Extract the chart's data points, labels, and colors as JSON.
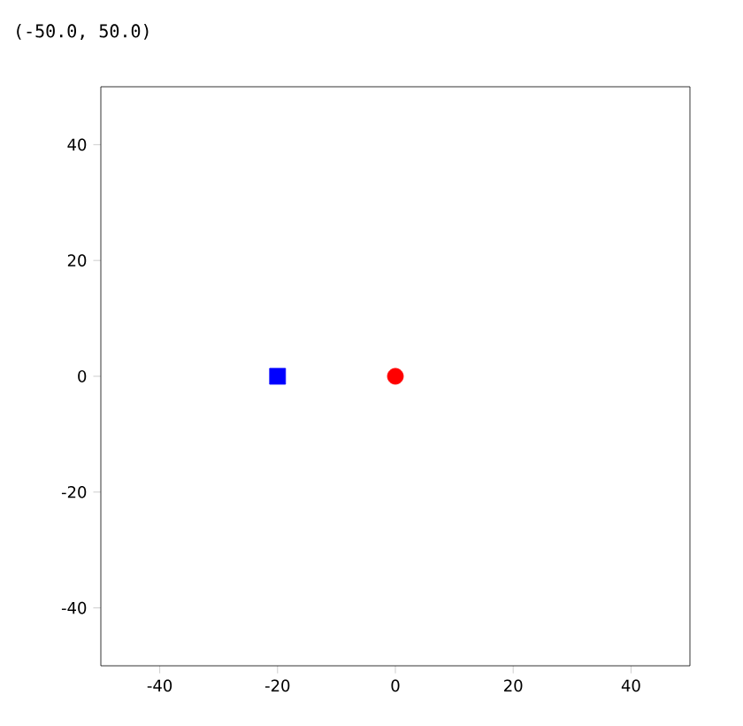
{
  "chart_data": {
    "type": "scatter",
    "annotations": [
      "(-50.0, 50.0)"
    ],
    "series": [
      {
        "color": "#ff0000",
        "marker": "circle",
        "x": [
          0
        ],
        "values": [
          0
        ]
      },
      {
        "color": "#0000ff",
        "marker": "square",
        "x": [
          -20
        ],
        "values": [
          0
        ]
      }
    ],
    "xlim": [
      -50,
      50
    ],
    "ylim": [
      -50,
      50
    ],
    "xticks": [
      -40,
      -20,
      0,
      20,
      40
    ],
    "yticks": [
      -40,
      -20,
      0,
      20,
      40
    ]
  }
}
